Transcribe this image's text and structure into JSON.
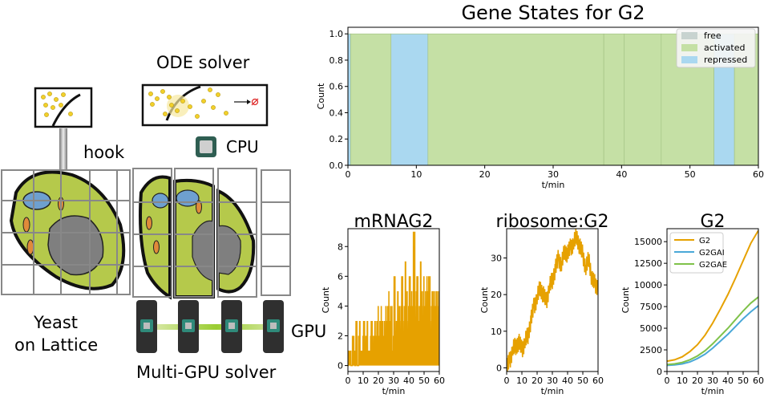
{
  "diagram": {
    "ode_solver_label": "ODE solver",
    "hook_label": "hook",
    "cpu_label": "CPU",
    "yeast_label_line1": "Yeast",
    "yeast_label_line2": "on Lattice",
    "gpu_label": "GPU",
    "multi_gpu_label": "Multi-GPU solver",
    "colors": {
      "cell_fill": "#b5c94b",
      "cell_outline": "#111111",
      "nucleus": "#7f7f7f",
      "vacuole": "#6ea0d0",
      "mito": "#e08a3a",
      "particle": "#f2d02a",
      "gpu_body": "#2f2f2f",
      "gpu_chip": "#2f8a7a",
      "link": "#9acd32"
    }
  },
  "chart_data": [
    {
      "type": "area",
      "title": "Gene States for G2",
      "xlabel": "t/min",
      "ylabel": "Count",
      "xlim": [
        0,
        60
      ],
      "ylim": [
        0,
        1.05
      ],
      "xticks": [
        0,
        10,
        20,
        30,
        40,
        50,
        60
      ],
      "yticks": [
        0.0,
        0.2,
        0.4,
        0.6,
        0.8,
        1.0
      ],
      "ytick_labels": [
        "0.0",
        "0.2",
        "0.4",
        "0.6",
        "0.8",
        "1.0"
      ],
      "legend": [
        "free",
        "activated",
        "repressed"
      ],
      "legend_position": "top-right",
      "colors": {
        "free": "#c8d3d0",
        "activated": "#c5e0a5",
        "repressed": "#aad8f0"
      },
      "segments": [
        {
          "state": "repressed",
          "start": 0,
          "end": 0.4
        },
        {
          "state": "activated",
          "start": 0.4,
          "end": 6.3
        },
        {
          "state": "repressed",
          "start": 6.3,
          "end": 11.7
        },
        {
          "state": "activated",
          "start": 11.7,
          "end": 37.4
        },
        {
          "state": "activated",
          "start": 37.4,
          "end": 40.4
        },
        {
          "state": "activated",
          "start": 40.4,
          "end": 45.8
        },
        {
          "state": "activated",
          "start": 45.8,
          "end": 53.5
        },
        {
          "state": "repressed",
          "start": 53.5,
          "end": 56.5
        },
        {
          "state": "activated",
          "start": 56.5,
          "end": 60
        }
      ]
    },
    {
      "type": "line",
      "title": "mRNAG2",
      "xlabel": "t/min",
      "ylabel": "Count",
      "xlim": [
        0,
        60
      ],
      "ylim": [
        -0.4,
        9.2
      ],
      "xticks": [
        0,
        10,
        20,
        30,
        40,
        50,
        60
      ],
      "yticks": [
        0,
        2,
        4,
        6,
        8
      ],
      "color": "#e6a100",
      "series": [
        {
          "x": [
            0,
            1,
            2,
            3,
            4,
            5,
            6,
            7,
            8,
            9,
            10,
            11,
            12,
            13,
            14,
            15,
            16,
            17,
            18,
            19,
            20,
            21,
            22,
            23,
            24,
            25,
            26,
            27,
            28,
            29,
            30,
            31,
            32,
            33,
            34,
            35,
            36,
            37,
            38,
            39,
            40,
            41,
            42,
            43,
            44,
            45,
            46,
            47,
            48,
            49,
            50,
            51,
            52,
            53,
            54,
            55,
            56,
            57,
            58,
            59,
            60
          ],
          "max": [
            1,
            1,
            0,
            2,
            1,
            3,
            0,
            3,
            1,
            2,
            3,
            2,
            3,
            1,
            2,
            3,
            2,
            3,
            2,
            4,
            2,
            4,
            3,
            2,
            4,
            3,
            5,
            3,
            4,
            2,
            6,
            3,
            5,
            4,
            4,
            6,
            3,
            7,
            5,
            4,
            6,
            5,
            4,
            9,
            5,
            6,
            4,
            7,
            5,
            6,
            4,
            6,
            5,
            6,
            4,
            5,
            5,
            4,
            5,
            5,
            5
          ],
          "min": [
            0,
            0,
            0,
            0,
            0,
            0,
            0,
            0,
            0,
            0,
            0,
            0,
            0,
            0,
            0,
            0,
            0,
            0,
            0,
            0,
            0,
            0,
            0,
            0,
            0,
            0,
            0,
            0,
            0,
            0,
            0,
            0,
            0,
            0,
            0,
            0,
            0,
            0,
            0,
            0,
            0,
            0,
            0,
            0,
            0,
            0,
            0,
            0,
            0,
            0,
            0,
            0,
            0,
            0,
            0,
            0,
            0,
            0,
            0,
            0,
            0
          ]
        }
      ]
    },
    {
      "type": "line",
      "title": "ribosome:G2",
      "xlabel": "t/min",
      "ylabel": "Count",
      "xlim": [
        0,
        60
      ],
      "ylim": [
        -1,
        38
      ],
      "xticks": [
        0,
        10,
        20,
        30,
        40,
        50,
        60
      ],
      "yticks": [
        0,
        10,
        20,
        30
      ],
      "color": "#e6a100",
      "series": [
        {
          "x": [
            0,
            2,
            4,
            6,
            8,
            10,
            12,
            14,
            16,
            18,
            20,
            22,
            24,
            26,
            28,
            30,
            32,
            34,
            36,
            38,
            40,
            42,
            44,
            46,
            48,
            50,
            52,
            54,
            56,
            58,
            60
          ],
          "y": [
            0,
            2,
            5,
            6,
            7,
            5,
            7,
            9,
            13,
            17,
            19,
            22,
            20,
            18,
            22,
            24,
            27,
            30,
            28,
            32,
            31,
            33,
            34,
            36,
            33,
            31,
            27,
            30,
            24,
            23,
            22
          ],
          "noise": 2.5
        }
      ]
    },
    {
      "type": "line",
      "title": "G2",
      "xlabel": "t/min",
      "ylabel": "Count",
      "xlim": [
        0,
        60
      ],
      "ylim": [
        0,
        16500
      ],
      "xticks": [
        0,
        10,
        20,
        30,
        40,
        50,
        60
      ],
      "yticks": [
        0,
        2500,
        5000,
        7500,
        10000,
        12500,
        15000
      ],
      "legend_position": "top-left",
      "series": [
        {
          "name": "G2",
          "color": "#e6a100",
          "x": [
            0,
            5,
            10,
            15,
            20,
            25,
            30,
            35,
            40,
            45,
            50,
            55,
            60
          ],
          "y": [
            1200,
            1350,
            1700,
            2300,
            3100,
            4200,
            5600,
            7200,
            8900,
            10800,
            12800,
            14800,
            16300
          ]
        },
        {
          "name": "G2GAI",
          "color": "#4aa8d8",
          "x": [
            0,
            5,
            10,
            15,
            20,
            25,
            30,
            35,
            40,
            45,
            50,
            55,
            60
          ],
          "y": [
            700,
            760,
            880,
            1100,
            1500,
            2000,
            2700,
            3500,
            4300,
            5200,
            6100,
            6900,
            7600
          ]
        },
        {
          "name": "G2GAE",
          "color": "#7fc24a",
          "x": [
            0,
            5,
            10,
            15,
            20,
            25,
            30,
            35,
            40,
            45,
            50,
            55,
            60
          ],
          "y": [
            800,
            880,
            1050,
            1350,
            1800,
            2400,
            3200,
            4100,
            5000,
            6000,
            7000,
            7900,
            8600
          ]
        }
      ]
    }
  ]
}
